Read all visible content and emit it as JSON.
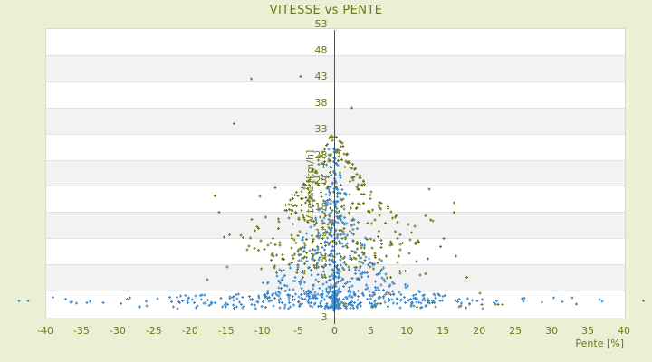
{
  "title": "VITESSE vs PENTE",
  "colors": {
    "background": "#ebf0d5",
    "text_olive": "#6b7a1a",
    "band_gray": "#f2f2f2",
    "band_white": "#ffffff",
    "grid_line": "#e2e2e2",
    "plot_border": "#d8d8d8",
    "zero_line": "#4f5d10",
    "series_blue": "#3f88c9",
    "series_olive": "#6e7a1e"
  },
  "chart_data": {
    "type": "scatter",
    "title": "VITESSE vs PENTE",
    "xlabel": "Pente [%]",
    "ylabel": "Vitesse [km/h]",
    "xlim": [
      -40,
      40
    ],
    "ylim": [
      3,
      53
    ],
    "x_tick_labels": [
      "-40",
      "-35",
      "-30",
      "-25",
      "-20",
      "-15",
      "-10",
      "-5",
      "0",
      "5",
      "10",
      "15",
      "20",
      "25",
      "30",
      "35",
      "40"
    ],
    "y_tick_labels": [
      "53",
      "48",
      "43",
      "38",
      "33",
      "28",
      "23",
      "18",
      "13",
      "8"
    ],
    "y_bottom_label": "3",
    "grid": "horizontal-alternating-bands",
    "bands": 11,
    "legend": "none",
    "zero_line_x": 0,
    "marker": "plus",
    "seed": 1337,
    "series": [
      {
        "name": "vitesse_haute_olive",
        "color": "#6e7a1e",
        "clusters": [
          {
            "kind": "funnel_high",
            "n": 320,
            "x_sigma": 4.6,
            "x_clamp": [
              -15.5,
              15.5
            ],
            "v_top_base": 13,
            "v_amp": 23,
            "decay": 7.5,
            "v_lo": 10.5,
            "bias": 1.7
          },
          {
            "kind": "band",
            "n": 95,
            "x_sigma": 6.5,
            "x_clamp": [
              -19,
              19
            ],
            "v_min": 9.5,
            "v_max": 16.5
          },
          {
            "kind": "band",
            "n": 48,
            "x_sigma": 8,
            "x_clamp": [
              -16.5,
              16.5
            ],
            "v_min": 15,
            "v_max": 26
          },
          {
            "kind": "rug",
            "n": 20,
            "x_range": [
              -2.5,
              15
            ],
            "v_min": 4.4,
            "v_spread": 1.1,
            "rise": 0,
            "rise_decay": 1
          },
          {
            "kind": "rug",
            "n": 8,
            "x_range": [
              15,
              34
            ],
            "v_min": 4.4,
            "v_spread": 0.9,
            "rise": 0,
            "rise_decay": 1
          },
          {
            "kind": "points",
            "pts": [
              [
                -11.5,
                44.2
              ],
              [
                -4.7,
                44.6
              ],
              [
                2.4,
                39.2
              ],
              [
                -13.9,
                36.4
              ],
              [
                16.8,
                13.4
              ],
              [
                18.3,
                9.7
              ],
              [
                -17.6,
                9.3
              ],
              [
                20.1,
                6.9
              ]
            ]
          }
        ]
      },
      {
        "name": "vitesse_basse_bleu",
        "color": "#3f88c9",
        "clusters": [
          {
            "kind": "funnel_low",
            "n": 430,
            "x_scale": 4.3,
            "x_clamp": [
              -27,
              21
            ],
            "v_base": 4.6,
            "v_amp": 27,
            "decay": 5.5,
            "bias": 1.6
          },
          {
            "kind": "rug",
            "n": 110,
            "x_range": [
              -23,
              15
            ],
            "v_min": 5.0,
            "v_spread": 1.5,
            "rise": 1.3,
            "rise_decay": 9
          },
          {
            "kind": "rug",
            "n": 34,
            "x_range": [
              -40,
              40
            ],
            "v_min": 5.1,
            "v_spread": 1.2,
            "rise": 0,
            "rise_decay": 1
          },
          {
            "kind": "stack",
            "n": 115,
            "x_sigma": 0.55,
            "v_min": 4.2,
            "v_max": 32,
            "bias": 1.35
          },
          {
            "kind": "stack",
            "n": 38,
            "x_sigma": 0.13,
            "v_min": 3.8,
            "v_max": 9.5,
            "bias": 1.0
          },
          {
            "kind": "arcs",
            "pts_per_arc": 14,
            "jitter": 0.3,
            "arcs": [
              {
                "c": 16,
                "x": [
                  -15,
                  -1.6
                ]
              },
              {
                "c": 16,
                "x": [
                  1.6,
                  15
                ]
              },
              {
                "c": 30,
                "x": [
                  -19,
                  -2.2
                ]
              },
              {
                "c": 30,
                "x": [
                  2.2,
                  19
                ]
              },
              {
                "c": 44,
                "x": [
                  3.5,
                  21
                ]
              }
            ]
          },
          {
            "kind": "points",
            "pts": [
              [
                -43.6,
                5.6
              ],
              [
                -42.4,
                5.6
              ],
              [
                42.7,
                5.6
              ],
              [
                25.9,
                6.0
              ],
              [
                -28.7,
                5.9
              ],
              [
                31.5,
                5.4
              ],
              [
                -33.8,
                5.5
              ]
            ]
          }
        ]
      }
    ]
  }
}
